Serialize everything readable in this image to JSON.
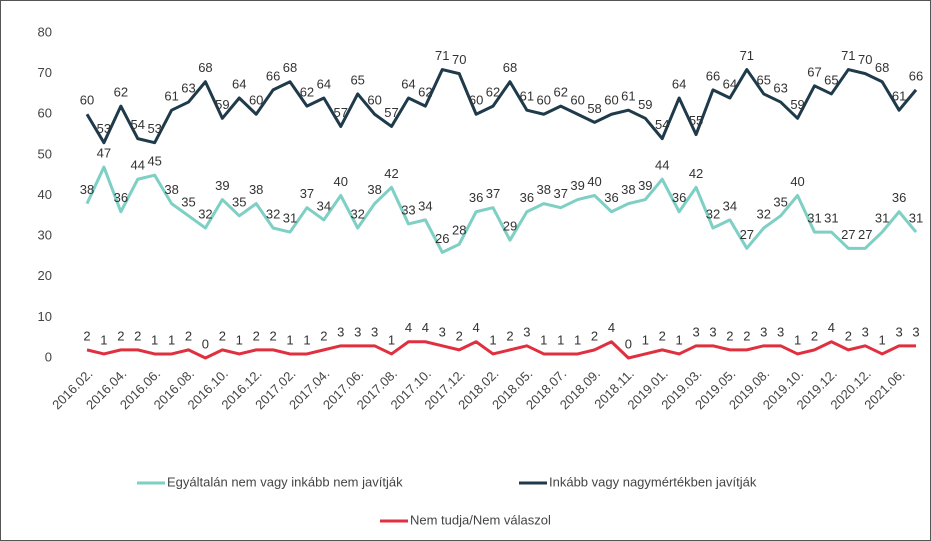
{
  "chart_data": {
    "type": "line",
    "categories": [
      "2016.02.",
      null,
      "2016.04.",
      null,
      "2016.06.",
      null,
      "2016.08.",
      null,
      "2016.10.",
      null,
      "2016.12.",
      null,
      "2017.02.",
      null,
      "2017.04.",
      null,
      "2017.06.",
      null,
      "2017.08.",
      null,
      "2017.10.",
      null,
      "2017.12.",
      null,
      "2018.02.",
      null,
      "2018.05.",
      null,
      "2018.07.",
      null,
      "2018.09.",
      null,
      "2018.11.",
      null,
      "2019.01.",
      null,
      "2019.03.",
      null,
      "2019.05.",
      null,
      "2019.08.",
      null,
      "2019.10.",
      null,
      "2019.12.",
      null,
      "2020.12.",
      null,
      "2021.06.",
      null
    ],
    "series": [
      {
        "name": "Egyáltalán nem vagy inkább nem javítják",
        "color": "#7ecfc4",
        "values": [
          38,
          47,
          36,
          44,
          45,
          38,
          35,
          32,
          39,
          35,
          38,
          32,
          31,
          37,
          34,
          40,
          32,
          38,
          42,
          33,
          34,
          26,
          28,
          36,
          37,
          29,
          36,
          38,
          37,
          39,
          40,
          36,
          38,
          39,
          44,
          36,
          42,
          32,
          34,
          27,
          32,
          35,
          40,
          31,
          31,
          27,
          27,
          31,
          36,
          31
        ]
      },
      {
        "name": "Inkább vagy nagymértékben javítják",
        "color": "#1f3a4a",
        "values": [
          60,
          53,
          62,
          54,
          53,
          61,
          63,
          68,
          59,
          64,
          60,
          66,
          68,
          62,
          64,
          57,
          65,
          60,
          57,
          64,
          62,
          71,
          70,
          60,
          62,
          68,
          61,
          60,
          62,
          60,
          58,
          60,
          61,
          59,
          54,
          64,
          55,
          66,
          64,
          71,
          65,
          63,
          59,
          67,
          65,
          71,
          70,
          68,
          61,
          66
        ]
      },
      {
        "name": "Nem tudja/Nem válaszol",
        "color": "#e0303f",
        "values": [
          2,
          1,
          2,
          2,
          1,
          1,
          2,
          0,
          2,
          1,
          2,
          2,
          1,
          1,
          2,
          3,
          3,
          3,
          1,
          4,
          4,
          3,
          2,
          4,
          1,
          2,
          3,
          1,
          1,
          1,
          2,
          4,
          0,
          1,
          2,
          1,
          3,
          3,
          2,
          2,
          3,
          3,
          1,
          2,
          4,
          2,
          3,
          1,
          3,
          3
        ]
      }
    ],
    "ylim": [
      0,
      80
    ],
    "yticks": [
      0,
      10,
      20,
      30,
      40,
      50,
      60,
      70,
      80
    ],
    "grid": false
  }
}
